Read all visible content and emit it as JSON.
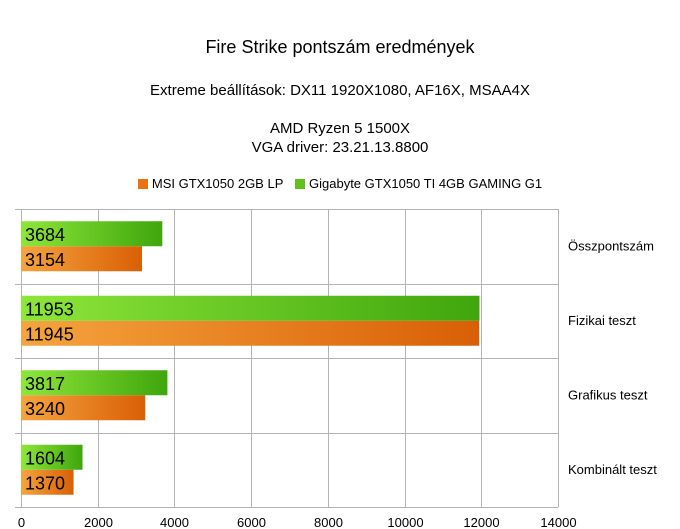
{
  "chart_data": {
    "type": "bar",
    "orientation": "horizontal",
    "title": "Fire Strike pontszám eredmények",
    "subtitle_lines": [
      "Extreme beállítások: DX11 1920X1080, AF16X, MSAA4X",
      "AMD Ryzen 5 1500X",
      "VGA driver: 23.21.13.8800"
    ],
    "categories": [
      "Összpontszám",
      "Fizikai teszt",
      "Grafikus teszt",
      "Kombinált teszt"
    ],
    "series": [
      {
        "name": "MSI GTX1050 2GB LP",
        "color": "#e8730f",
        "values": [
          3154,
          11945,
          3240,
          1370
        ]
      },
      {
        "name": "Gigabyte GTX1050 TI 4GB GAMING G1",
        "color": "#5ec21a",
        "values": [
          3684,
          11953,
          3817,
          1604
        ]
      }
    ],
    "xlim": [
      0,
      14000
    ],
    "xticks": [
      0,
      2000,
      4000,
      6000,
      8000,
      10000,
      12000,
      14000
    ],
    "grid": true,
    "legend_position": "top"
  }
}
